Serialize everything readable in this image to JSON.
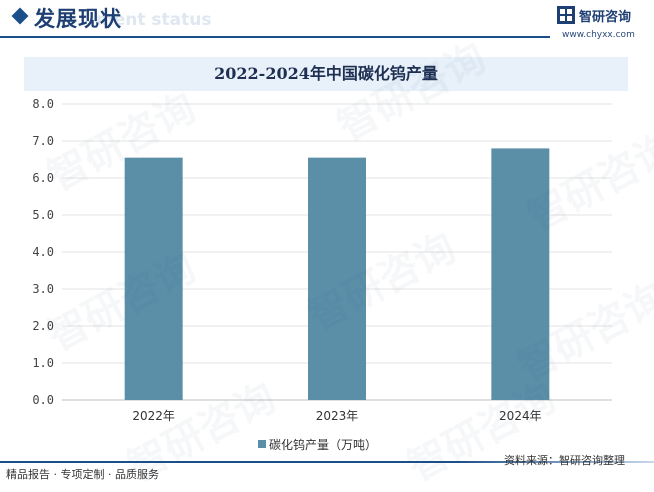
{
  "header": {
    "title": "发展现状",
    "subtitle_en": "ment status",
    "logo_name": "智研咨询",
    "logo_url": "www.chyxx.com"
  },
  "chart_data": {
    "type": "bar",
    "title": "2022-2024年中国碳化钨产量",
    "categories": [
      "2022年",
      "2023年",
      "2024年"
    ],
    "series": [
      {
        "name": "碳化钨产量（万吨）",
        "values": [
          6.55,
          6.55,
          6.8
        ]
      }
    ],
    "ylim": [
      0,
      8
    ],
    "yticks": [
      "0.0",
      "1.0",
      "2.0",
      "3.0",
      "4.0",
      "5.0",
      "6.0",
      "7.0",
      "8.0"
    ],
    "xlabel": "",
    "ylabel": "",
    "grid": true,
    "legend_position": "bottom",
    "bar_color": "#5b8fa8"
  },
  "footer": {
    "left": "精品报告 · 专项定制 · 品质服务",
    "source": "资料来源：智研咨询整理"
  },
  "watermark_text": "智研咨询"
}
